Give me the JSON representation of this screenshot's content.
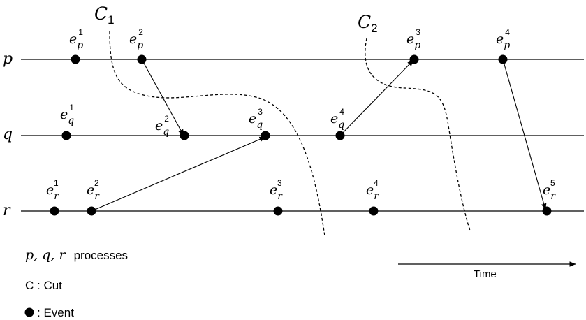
{
  "processes": [
    {
      "id": "p",
      "label": "p"
    },
    {
      "id": "q",
      "label": "q"
    },
    {
      "id": "r",
      "label": "r"
    }
  ],
  "events": [
    {
      "id": "p1",
      "process": "p",
      "base": "e",
      "sub": "p",
      "sup": "1"
    },
    {
      "id": "p2",
      "process": "p",
      "base": "e",
      "sub": "p",
      "sup": "2"
    },
    {
      "id": "p3",
      "process": "p",
      "base": "e",
      "sub": "p",
      "sup": "3"
    },
    {
      "id": "p4",
      "process": "p",
      "base": "e",
      "sub": "p",
      "sup": "4"
    },
    {
      "id": "q1",
      "process": "q",
      "base": "e",
      "sub": "q",
      "sup": "1"
    },
    {
      "id": "q2",
      "process": "q",
      "base": "e",
      "sub": "q",
      "sup": "2"
    },
    {
      "id": "q3",
      "process": "q",
      "base": "e",
      "sub": "q",
      "sup": "3"
    },
    {
      "id": "q4",
      "process": "q",
      "base": "e",
      "sub": "q",
      "sup": "4"
    },
    {
      "id": "r1",
      "process": "r",
      "base": "e",
      "sub": "r",
      "sup": "1"
    },
    {
      "id": "r2",
      "process": "r",
      "base": "e",
      "sub": "r",
      "sup": "2"
    },
    {
      "id": "r3",
      "process": "r",
      "base": "e",
      "sub": "r",
      "sup": "3"
    },
    {
      "id": "r4",
      "process": "r",
      "base": "e",
      "sub": "r",
      "sup": "4"
    },
    {
      "id": "r5",
      "process": "r",
      "base": "e",
      "sub": "r",
      "sup": "5"
    }
  ],
  "messages": [
    {
      "from": "p2",
      "to": "q2"
    },
    {
      "from": "r2",
      "to": "q3"
    },
    {
      "from": "q4",
      "to": "p3"
    },
    {
      "from": "p4",
      "to": "r5"
    }
  ],
  "cuts": [
    {
      "id": "c1",
      "base": "C",
      "sub": "1"
    },
    {
      "id": "c2",
      "base": "C",
      "sub": "2"
    }
  ],
  "legend": {
    "processes_vars": "p, q, r",
    "processes_word": "processes",
    "cut": "C : Cut",
    "event": ": Event"
  },
  "time_label": "Time",
  "colors": {
    "ink": "#000000",
    "background": "#ffffff"
  }
}
